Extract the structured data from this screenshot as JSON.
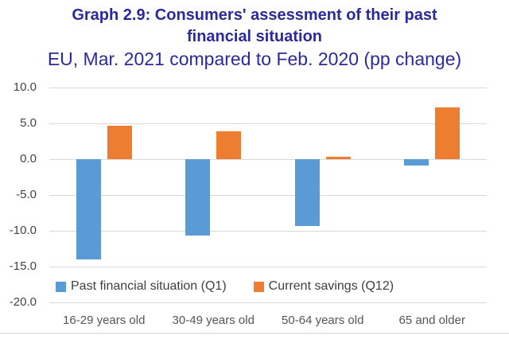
{
  "header": {
    "title": "Graph 2.9: Consumers' assessment of their past financial situation",
    "subtitle": "EU, Mar. 2021 compared to Feb. 2020 (pp change)"
  },
  "colors": {
    "title_text": "#2b2a99",
    "series_past_financial": "#5b9bd5",
    "series_current_savings": "#ed7d31",
    "gridline": "#d9d9d9",
    "axis_text": "#444444"
  },
  "chart_data": {
    "type": "bar",
    "title": "Graph 2.9: Consumers' assessment of their past financial situation",
    "subtitle": "EU, Mar. 2021 compared to Feb. 2020 (pp change)",
    "categories": [
      "16-29 years old",
      "30-49 years old",
      "50-64 years old",
      "65 and older"
    ],
    "series": [
      {
        "name": "Past financial situation (Q1)",
        "color": "#5b9bd5",
        "values": [
          -14.0,
          -10.7,
          -9.3,
          -0.9
        ]
      },
      {
        "name": "Current savings (Q12)",
        "color": "#ed7d31",
        "values": [
          4.7,
          3.9,
          0.3,
          7.2
        ]
      }
    ],
    "ylabel": "",
    "xlabel": "",
    "ylim": [
      -20,
      10
    ],
    "ytick_step": 5,
    "ytick_labels": [
      "10.0",
      "5.0",
      "0.0",
      "-5.0",
      "-10.0",
      "-15.0",
      "-20.0"
    ],
    "grid": true,
    "legend_position": "bottom"
  }
}
